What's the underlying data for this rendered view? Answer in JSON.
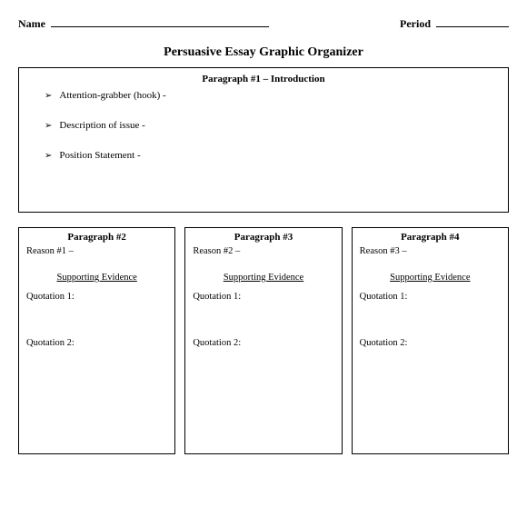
{
  "header": {
    "name_label": "Name",
    "period_label": "Period"
  },
  "title": "Persuasive Essay Graphic Organizer",
  "intro": {
    "heading": "Paragraph #1 – Introduction",
    "items": [
      "Attention-grabber (hook) -",
      "Description of issue -",
      "Position Statement -"
    ]
  },
  "columns": [
    {
      "heading": "Paragraph #2",
      "reason": "Reason #1 –",
      "evidence_heading": "Supporting Evidence",
      "q1": "Quotation 1:",
      "q2": "Quotation 2:"
    },
    {
      "heading": "Paragraph #3",
      "reason": "Reason #2 –",
      "evidence_heading": "Supporting Evidence",
      "q1": "Quotation 1:",
      "q2": "Quotation 2:"
    },
    {
      "heading": "Paragraph #4",
      "reason": "Reason #3 –",
      "evidence_heading": "Supporting Evidence",
      "q1": "Quotation 1:",
      "q2": "Quotation 2:"
    }
  ],
  "style": {
    "page_bg": "#ffffff",
    "text_color": "#000000",
    "border_color": "#000000",
    "font_family": "Georgia, Times New Roman, serif",
    "title_fontsize": 14,
    "heading_fontsize": 11,
    "body_fontsize": 11
  }
}
